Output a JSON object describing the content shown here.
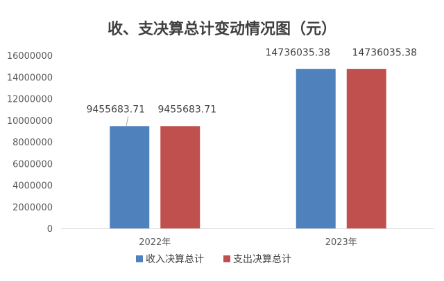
{
  "chart_data": {
    "type": "bar",
    "title": "收、支决算总计变动情况图（元）",
    "categories": [
      "2022年",
      "2023年"
    ],
    "series": [
      {
        "name": "收入决算总计",
        "color": "#4F81BD",
        "values": [
          9455683.71,
          14736035.38
        ],
        "labels": [
          "9455683.71",
          "14736035.38"
        ]
      },
      {
        "name": "支出决算总计",
        "color": "#C0504D",
        "values": [
          9455683.71,
          14736035.38
        ],
        "labels": [
          "9455683.71",
          "14736035.38"
        ]
      }
    ],
    "ylim": [
      0,
      16000000
    ],
    "yticks": [
      "0",
      "2000000",
      "4000000",
      "6000000",
      "8000000",
      "10000000",
      "12000000",
      "14000000",
      "16000000"
    ],
    "grid": false,
    "legend_position": "bottom"
  }
}
